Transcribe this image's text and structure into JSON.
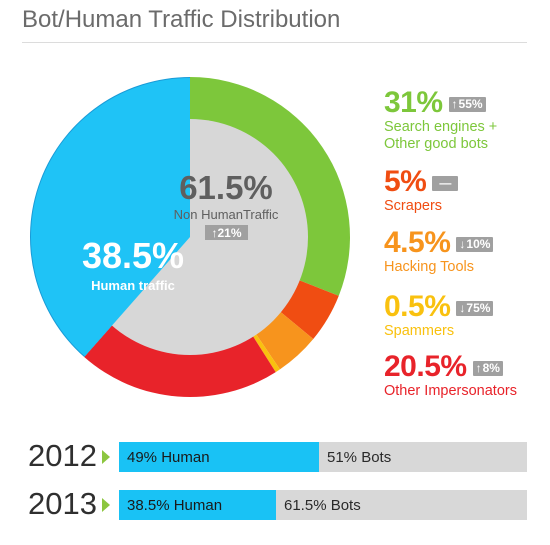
{
  "chart_data": [
    {
      "type": "pie",
      "title": "Bot/Human Traffic Distribution",
      "center": {
        "value": "61.5%",
        "label": "Non HumanTraffic",
        "change": "21%",
        "change_direction": "up"
      },
      "human_slice": {
        "value": 38.5,
        "value_label": "38.5%",
        "label": "Human traffic",
        "color": "#1fc3f6"
      },
      "series": [
        {
          "name": "Search engines + Other good bots",
          "value": 31,
          "value_label": "31%",
          "color": "#7dc73b",
          "change": "55%",
          "change_direction": "up"
        },
        {
          "name": "Scrapers",
          "value": 5,
          "value_label": "5%",
          "color": "#f04d12",
          "change": "—",
          "change_direction": "none"
        },
        {
          "name": "Hacking Tools",
          "value": 4.5,
          "value_label": "4.5%",
          "color": "#f7941d",
          "change": "10%",
          "change_direction": "down"
        },
        {
          "name": "Spammers",
          "value": 0.5,
          "value_label": "0.5%",
          "color": "#f9c10f",
          "change": "75%",
          "change_direction": "down"
        },
        {
          "name": "Other Impersonators",
          "value": 20.5,
          "value_label": "20.5%",
          "color": "#e8232a",
          "change": "8%",
          "change_direction": "up"
        }
      ]
    },
    {
      "type": "bar",
      "orientation": "horizontal",
      "stacked": true,
      "categories": [
        "2012",
        "2013"
      ],
      "series": [
        {
          "name": "Human",
          "values": [
            49,
            38.5
          ],
          "color": "#19c2f5"
        },
        {
          "name": "Bots",
          "values": [
            51,
            61.5
          ],
          "color": "#d8d8d8"
        }
      ],
      "labels": [
        {
          "human": "49% Human",
          "bots": "51% Bots"
        },
        {
          "human": "38.5% Human",
          "bots": "61.5% Bots"
        }
      ],
      "arrow_color": "#8cc63f"
    }
  ],
  "colors": {
    "title": "#6b6b6b",
    "center_disc": "#d7d7d7",
    "center_text": "#5f5f5f",
    "human_outer_ring": "#199bd7",
    "badge": "#a0a0a0",
    "badge_text": "#ffffff"
  },
  "icons": {
    "up": "arrow-up-icon",
    "down": "arrow-down-icon",
    "bar_marker": "triangle-right-icon"
  }
}
